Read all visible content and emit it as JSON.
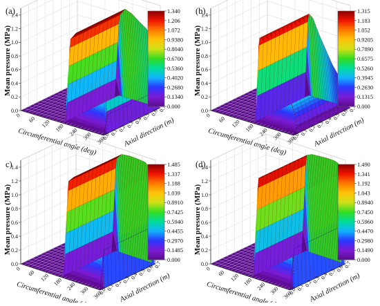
{
  "chart_data": [
    {
      "type": "surface",
      "panel": "(a)",
      "ylabel": "Mean pressure (MPa)",
      "xlabel": "Circumferential angle (deg)",
      "zlabel": "Axial direction (m)",
      "x_ticks": [
        "0",
        "60",
        "120",
        "180",
        "240",
        "300",
        "360"
      ],
      "y_ticks": [
        "0.0",
        "0.2",
        "0.4",
        "0.6",
        "0.8",
        "1.0",
        "1.2",
        "1.4"
      ],
      "z_ticks": [
        "0.0",
        "0.1",
        "0.2",
        "0.3",
        "0.4",
        "0.5",
        "0.6",
        "0.7"
      ],
      "colorbar": [
        "1.340",
        "1.206",
        "1.072",
        "0.9380",
        "0.8040",
        "0.6700",
        "0.5360",
        "0.4020",
        "0.2680",
        "0.1340",
        "0.000"
      ],
      "zlim": [
        0,
        1.34
      ],
      "pressure_region_deg": [
        180,
        360
      ],
      "profile": {
        "angle": [
          180,
          200,
          225,
          255,
          285,
          315,
          345,
          360
        ],
        "pressure": [
          0.0,
          1.22,
          1.34,
          1.3,
          1.22,
          1.15,
          1.05,
          0.0
        ]
      }
    },
    {
      "type": "surface",
      "panel": "(b)",
      "ylabel": "Mean pressure (MPa)",
      "xlabel": "Circumferential angle (deg)",
      "zlabel": "Axial direction (m)",
      "x_ticks": [
        "0",
        "60",
        "120",
        "180",
        "240",
        "300",
        "360"
      ],
      "y_ticks": [
        "0.0",
        "0.2",
        "0.4",
        "0.6",
        "0.8",
        "1.0",
        "1.2",
        "1.4"
      ],
      "z_ticks": [
        "0.0",
        "0.1",
        "0.2",
        "0.3",
        "0.4",
        "0.5",
        "0.6",
        "0.7"
      ],
      "colorbar": [
        "1.315",
        "1.183",
        "1.052",
        "0.9205",
        "0.7890",
        "0.6575",
        "0.5260",
        "0.3945",
        "0.2630",
        "0.1315",
        "0.000"
      ],
      "zlim": [
        0,
        1.315
      ],
      "pressure_region_deg": [
        180,
        360
      ],
      "profile": {
        "angle": [
          180,
          195,
          215,
          240,
          270,
          300,
          330,
          350,
          360
        ],
        "pressure": [
          0.0,
          1.25,
          1.2,
          1.0,
          0.8,
          0.6,
          0.45,
          0.25,
          0.0
        ]
      }
    },
    {
      "type": "surface",
      "panel": "c)",
      "ylabel": "Mean pressure (MPa)",
      "xlabel": "Circumferential angle (deg)",
      "zlabel": "Axial direction (m)",
      "x_ticks": [
        "0",
        "60",
        "120",
        "180",
        "240",
        "300",
        "360"
      ],
      "y_ticks": [
        "0.0",
        "0.2",
        "0.4",
        "0.6",
        "0.8",
        "1.0",
        "1.2",
        "1.4"
      ],
      "z_ticks": [
        "0.0",
        "0.1",
        "0.2",
        "0.3",
        "0.4",
        "0.5",
        "0.6",
        "0.7"
      ],
      "colorbar": [
        "1.485",
        "1.337",
        "1.188",
        "1.039",
        "0.8910",
        "0.7425",
        "0.5940",
        "0.4455",
        "0.2970",
        "0.1485",
        "0.000"
      ],
      "zlim": [
        0,
        1.485
      ],
      "pressure_region_deg": [
        180,
        360
      ],
      "profile": {
        "angle": [
          180,
          200,
          225,
          260,
          300,
          330,
          350,
          360
        ],
        "pressure": [
          0.0,
          1.38,
          1.47,
          1.485,
          1.48,
          1.47,
          1.42,
          0.0
        ]
      }
    },
    {
      "type": "surface",
      "panel": "(d)",
      "ylabel": "Mean pressure (MPa)",
      "xlabel": "Circumferential angle (deg)",
      "zlabel": "Axial direction (m)",
      "x_ticks": [
        "0",
        "60",
        "120",
        "180",
        "240",
        "300",
        "360"
      ],
      "y_ticks": [
        "0.0",
        "0.2",
        "0.4",
        "0.6",
        "0.8",
        "1.0",
        "1.2",
        "1.4"
      ],
      "z_ticks": [
        "0.0",
        "0.1",
        "0.2",
        "0.3",
        "0.4",
        "0.5",
        "0.6",
        "0.7"
      ],
      "colorbar": [
        "1.490",
        "1.341",
        "1.192",
        "1.043",
        "0.8940",
        "0.7450",
        "0.5960",
        "0.4470",
        "0.2980",
        "0.1490",
        "0.000"
      ],
      "zlim": [
        0,
        1.49
      ],
      "pressure_region_deg": [
        180,
        360
      ],
      "profile": {
        "angle": [
          180,
          200,
          225,
          260,
          300,
          330,
          350,
          360
        ],
        "pressure": [
          0.0,
          1.43,
          1.47,
          1.48,
          1.49,
          1.485,
          1.46,
          0.0
        ]
      }
    }
  ],
  "colormap": [
    "#5b0a8c",
    "#7b1cd6",
    "#2b36ff",
    "#11b4ff",
    "#00dc9a",
    "#33dd22",
    "#cfe016",
    "#ffc408",
    "#ff7a00",
    "#f01400",
    "#8b0000"
  ]
}
